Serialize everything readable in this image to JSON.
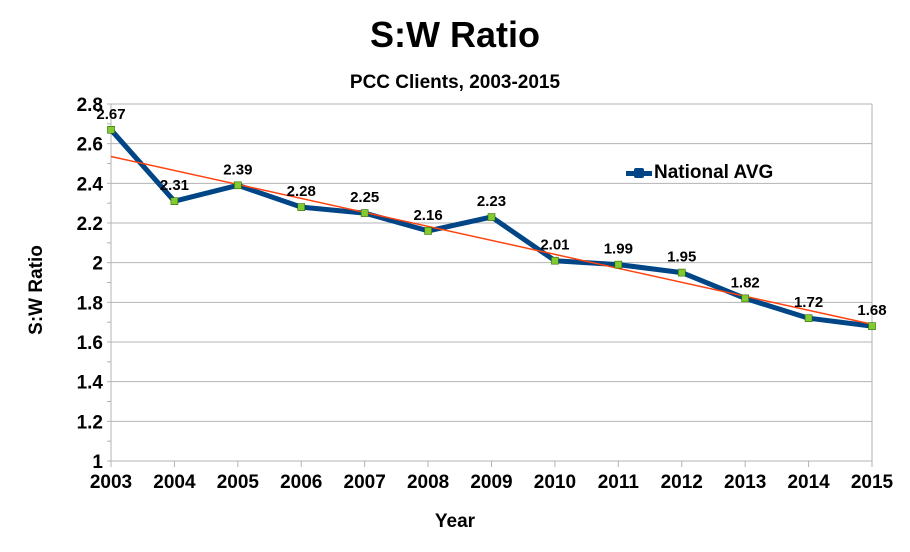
{
  "chart_data": {
    "type": "line",
    "title": "S:W Ratio",
    "subtitle": "PCC Clients, 2003-2015",
    "xlabel": "Year",
    "ylabel": "S:W Ratio",
    "categories": [
      "2003",
      "2004",
      "2005",
      "2006",
      "2007",
      "2008",
      "2009",
      "2010",
      "2011",
      "2012",
      "2013",
      "2014",
      "2015"
    ],
    "series": [
      {
        "name": "National AVG",
        "values": [
          2.67,
          2.31,
          2.39,
          2.28,
          2.25,
          2.16,
          2.23,
          2.01,
          1.99,
          1.95,
          1.82,
          1.72,
          1.68
        ],
        "data_labels": [
          "2.67",
          "2.31",
          "2.39",
          "2.28",
          "2.25",
          "2.16",
          "2.23",
          "2.01",
          "1.99",
          "1.95",
          "1.82",
          "1.72",
          "1.68"
        ],
        "color": "#004586",
        "marker_color": "#83ca30"
      }
    ],
    "trendline": {
      "type": "linear",
      "color": "#ff420e"
    },
    "ylim": [
      1,
      2.8
    ],
    "yticks": [
      "1",
      "1.2",
      "1.4",
      "1.6",
      "1.8",
      "2",
      "2.2",
      "2.4",
      "2.6",
      "2.8"
    ],
    "grid": true,
    "legend_position": "right-top"
  }
}
